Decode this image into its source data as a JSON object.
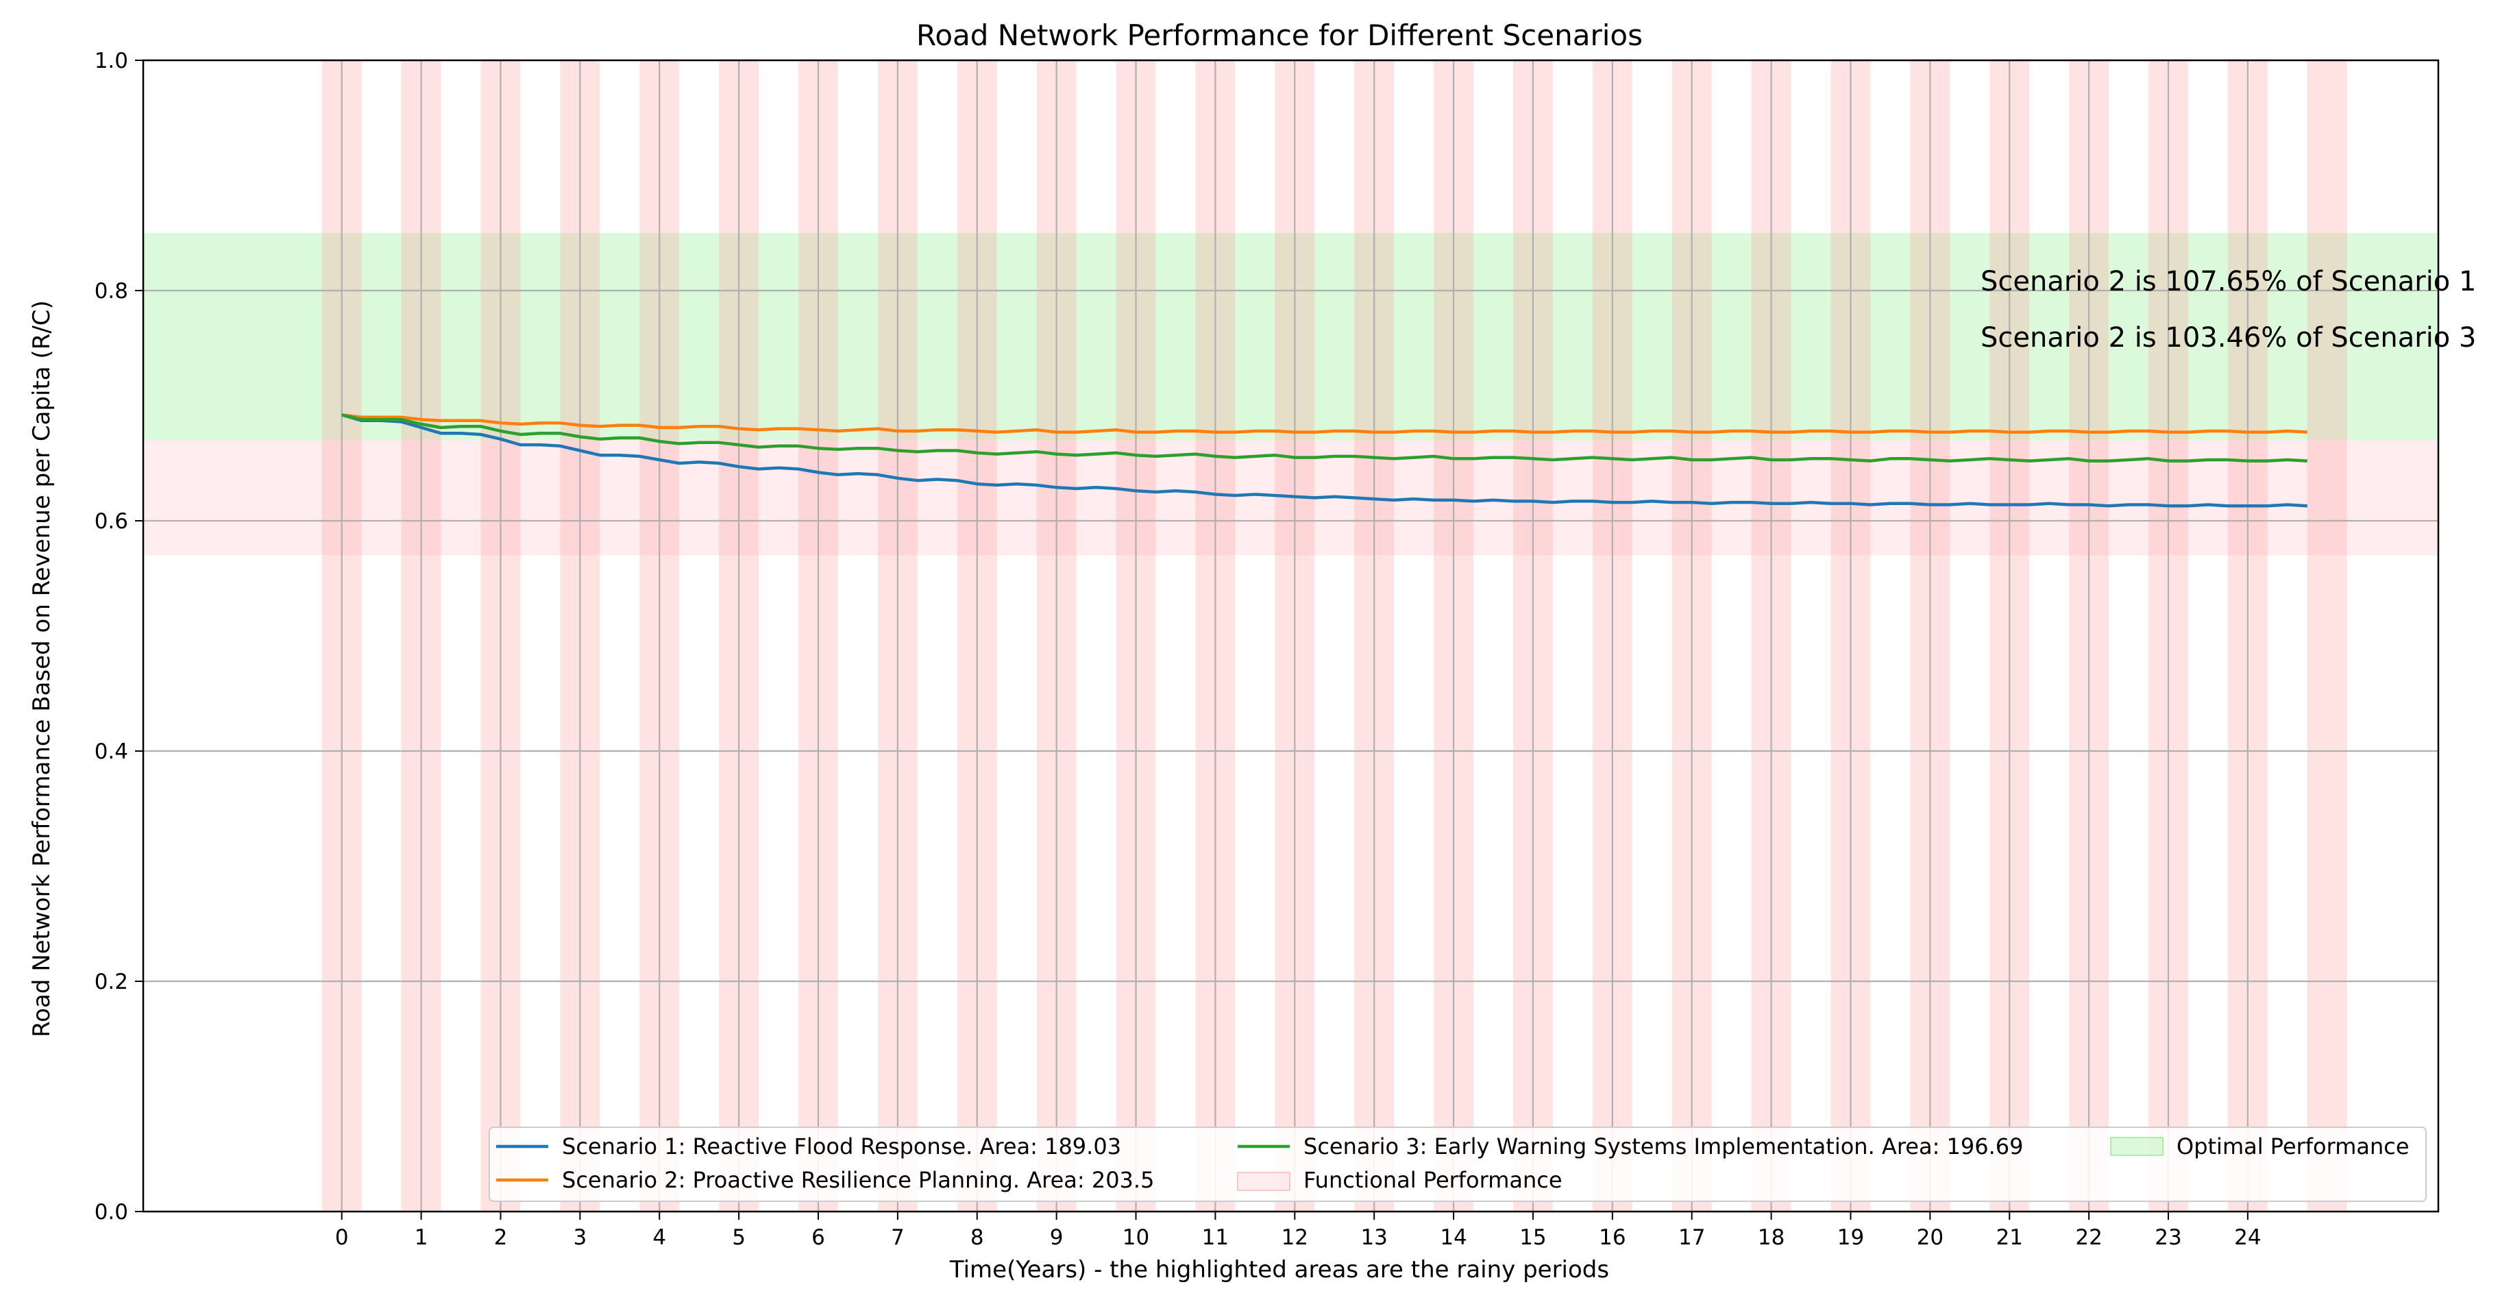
{
  "chart_data": {
    "type": "line",
    "title": "Road Network Performance for Different Scenarios",
    "xlabel": "Time(Years) - the highlighted areas are the rainy periods",
    "ylabel": "Road Network Performance Based on Revenue per Capita (R/C)",
    "xlim": [
      -2.5,
      26.4
    ],
    "ylim": [
      0,
      1
    ],
    "xticks": [
      0,
      1,
      2,
      3,
      4,
      5,
      6,
      7,
      8,
      9,
      10,
      11,
      12,
      13,
      14,
      15,
      16,
      17,
      18,
      19,
      20,
      21,
      22,
      23,
      24
    ],
    "yticks": [
      0.0,
      0.2,
      0.4,
      0.6,
      0.8,
      1.0
    ],
    "ytick_labels": [
      "0.0",
      "0.2",
      "0.4",
      "0.6",
      "0.8",
      "1.0"
    ],
    "grid": true,
    "x_step": 0.25,
    "series": [
      {
        "name": "Scenario 1: Reactive Flood Response. Area: 189.03",
        "color": "#1f77b4",
        "values": [
          0.692,
          0.687,
          0.687,
          0.686,
          0.681,
          0.676,
          0.676,
          0.675,
          0.671,
          0.666,
          0.666,
          0.665,
          0.661,
          0.657,
          0.657,
          0.656,
          0.653,
          0.65,
          0.651,
          0.65,
          0.647,
          0.645,
          0.646,
          0.645,
          0.642,
          0.64,
          0.641,
          0.64,
          0.637,
          0.635,
          0.636,
          0.635,
          0.632,
          0.631,
          0.632,
          0.631,
          0.629,
          0.628,
          0.629,
          0.628,
          0.626,
          0.625,
          0.626,
          0.625,
          0.623,
          0.622,
          0.623,
          0.622,
          0.621,
          0.62,
          0.621,
          0.62,
          0.619,
          0.618,
          0.619,
          0.618,
          0.618,
          0.617,
          0.618,
          0.617,
          0.617,
          0.616,
          0.617,
          0.617,
          0.616,
          0.616,
          0.617,
          0.616,
          0.616,
          0.615,
          0.616,
          0.616,
          0.615,
          0.615,
          0.616,
          0.615,
          0.615,
          0.614,
          0.615,
          0.615,
          0.614,
          0.614,
          0.615,
          0.614,
          0.614,
          0.614,
          0.615,
          0.614,
          0.614,
          0.613,
          0.614,
          0.614,
          0.613,
          0.613,
          0.614,
          0.613,
          0.613,
          0.613,
          0.614,
          0.613
        ]
      },
      {
        "name": "Scenario 2: Proactive Resilience Planning. Area: 203.5",
        "color": "#ff7f0e",
        "values": [
          0.692,
          0.69,
          0.69,
          0.69,
          0.688,
          0.687,
          0.687,
          0.687,
          0.685,
          0.684,
          0.685,
          0.685,
          0.683,
          0.682,
          0.683,
          0.683,
          0.681,
          0.681,
          0.682,
          0.682,
          0.68,
          0.679,
          0.68,
          0.68,
          0.679,
          0.678,
          0.679,
          0.68,
          0.678,
          0.678,
          0.679,
          0.679,
          0.678,
          0.677,
          0.678,
          0.679,
          0.677,
          0.677,
          0.678,
          0.679,
          0.677,
          0.677,
          0.678,
          0.678,
          0.677,
          0.677,
          0.678,
          0.678,
          0.677,
          0.677,
          0.678,
          0.678,
          0.677,
          0.677,
          0.678,
          0.678,
          0.677,
          0.677,
          0.678,
          0.678,
          0.677,
          0.677,
          0.678,
          0.678,
          0.677,
          0.677,
          0.678,
          0.678,
          0.677,
          0.677,
          0.678,
          0.678,
          0.677,
          0.677,
          0.678,
          0.678,
          0.677,
          0.677,
          0.678,
          0.678,
          0.677,
          0.677,
          0.678,
          0.678,
          0.677,
          0.677,
          0.678,
          0.678,
          0.677,
          0.677,
          0.678,
          0.678,
          0.677,
          0.677,
          0.678,
          0.678,
          0.677,
          0.677,
          0.678,
          0.677
        ]
      },
      {
        "name": "Scenario 3: Early Warning Systems Implementation. Area: 196.69",
        "color": "#2ca02c",
        "values": [
          0.692,
          0.688,
          0.688,
          0.688,
          0.684,
          0.681,
          0.682,
          0.682,
          0.678,
          0.675,
          0.676,
          0.676,
          0.673,
          0.671,
          0.672,
          0.672,
          0.669,
          0.667,
          0.668,
          0.668,
          0.666,
          0.664,
          0.665,
          0.665,
          0.663,
          0.662,
          0.663,
          0.663,
          0.661,
          0.66,
          0.661,
          0.661,
          0.659,
          0.658,
          0.659,
          0.66,
          0.658,
          0.657,
          0.658,
          0.659,
          0.657,
          0.656,
          0.657,
          0.658,
          0.656,
          0.655,
          0.656,
          0.657,
          0.655,
          0.655,
          0.656,
          0.656,
          0.655,
          0.654,
          0.655,
          0.656,
          0.654,
          0.654,
          0.655,
          0.655,
          0.654,
          0.653,
          0.654,
          0.655,
          0.654,
          0.653,
          0.654,
          0.655,
          0.653,
          0.653,
          0.654,
          0.655,
          0.653,
          0.653,
          0.654,
          0.654,
          0.653,
          0.652,
          0.654,
          0.654,
          0.653,
          0.652,
          0.653,
          0.654,
          0.653,
          0.652,
          0.653,
          0.654,
          0.652,
          0.652,
          0.653,
          0.654,
          0.652,
          0.652,
          0.653,
          0.653,
          0.652,
          0.652,
          0.653,
          0.652
        ]
      }
    ],
    "bands": [
      {
        "name": "Optimal Performance",
        "y_range": [
          0.67,
          0.85
        ],
        "color": "#90ee90",
        "opacity": 0.32
      },
      {
        "name": "Functional Performance",
        "y_range": [
          0.57,
          0.67
        ],
        "color": "#ffb6c1",
        "opacity": 0.25
      }
    ],
    "rainy_periods": [
      [
        -0.25,
        0.25
      ],
      [
        0.75,
        1.25
      ],
      [
        1.75,
        2.25
      ],
      [
        2.75,
        3.25
      ],
      [
        3.75,
        4.25
      ],
      [
        4.75,
        5.25
      ],
      [
        5.75,
        6.25
      ],
      [
        6.75,
        7.25
      ],
      [
        7.75,
        8.25
      ],
      [
        8.75,
        9.25
      ],
      [
        9.75,
        10.25
      ],
      [
        10.75,
        11.25
      ],
      [
        11.75,
        12.25
      ],
      [
        12.75,
        13.25
      ],
      [
        13.75,
        14.25
      ],
      [
        14.75,
        15.25
      ],
      [
        15.75,
        16.25
      ],
      [
        16.75,
        17.25
      ],
      [
        17.75,
        18.25
      ],
      [
        18.75,
        19.25
      ],
      [
        19.75,
        20.25
      ],
      [
        20.75,
        21.25
      ],
      [
        21.75,
        22.25
      ],
      [
        22.75,
        23.25
      ],
      [
        23.75,
        24.25
      ],
      [
        24.75,
        25.25
      ]
    ],
    "rainy_color": "#ff9999",
    "rainy_opacity": 0.28,
    "annotations": [
      "Scenario 2 is 107.65% of Scenario 1",
      "Scenario 2 is 103.46% of Scenario 3"
    ],
    "legend_placement": "lower-right"
  }
}
